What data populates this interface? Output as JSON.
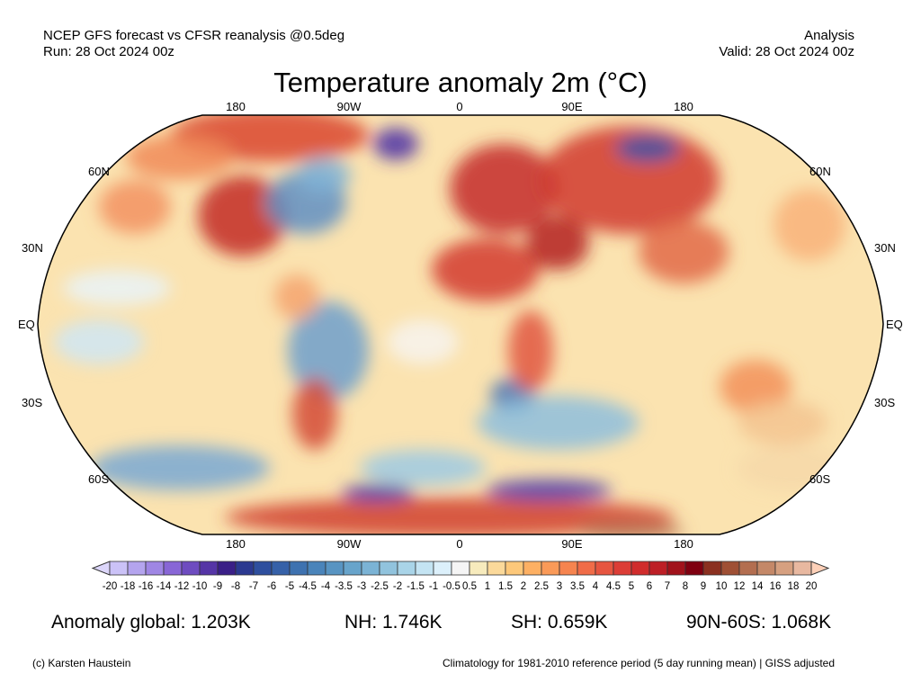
{
  "header": {
    "left_line1": "NCEP GFS forecast vs CFSR reanalysis @0.5deg",
    "left_line2": "Run: 28 Oct 2024 00z",
    "right_line1": "Analysis",
    "right_line2": "Valid: 28 Oct 2024 00z"
  },
  "title": "Temperature anomaly 2m (°C)",
  "map": {
    "lon_labels": [
      "180",
      "90W",
      "0",
      "90E",
      "180"
    ],
    "lat_labels_left": [
      "60N",
      "30N",
      "EQ",
      "30S",
      "60S"
    ],
    "lat_labels_right": [
      "60N",
      "30N",
      "EQ",
      "30S",
      "60S"
    ]
  },
  "colorbar": {
    "labels": [
      "-20",
      "-18",
      "-16",
      "-14",
      "-12",
      "-10",
      "-9",
      "-8",
      "-7",
      "-6",
      "-5",
      "-4.5",
      "-4",
      "-3.5",
      "-3",
      "-2.5",
      "-2",
      "-1.5",
      "-1",
      "-0.5",
      "0.5",
      "1",
      "1.5",
      "2",
      "2.5",
      "3",
      "3.5",
      "4",
      "4.5",
      "5",
      "6",
      "7",
      "8",
      "9",
      "10",
      "12",
      "14",
      "16",
      "18",
      "20"
    ],
    "colors": [
      "#cbc2f7",
      "#b4a4ee",
      "#9f86e4",
      "#8866d6",
      "#6e4cc0",
      "#5535a6",
      "#3a1f87",
      "#2b3990",
      "#2e4f9e",
      "#3661a8",
      "#3e72b0",
      "#4a84ba",
      "#5894c2",
      "#68a4cb",
      "#7bb3d5",
      "#91c3dd",
      "#a9d4e8",
      "#c4e4f3",
      "#dcf0fb",
      "#f5f5f5",
      "#f7ebbd",
      "#fbd99a",
      "#fdc87a",
      "#fdb063",
      "#fa9a58",
      "#f6844f",
      "#f06c48",
      "#e65540",
      "#dc3d36",
      "#d02c2c",
      "#bd1f26",
      "#a1121b",
      "#7f0010",
      "#8b3020",
      "#9f5035",
      "#b36e50",
      "#c48868",
      "#d6a080",
      "#e8b8a0"
    ],
    "under_color": "#dcd6fa",
    "over_color": "#fdd0b8"
  },
  "stats": {
    "global": "Anomaly global: 1.203K",
    "nh": "NH: 1.746K",
    "sh": "SH: 0.659K",
    "band": "90N-60S: 1.068K"
  },
  "footer": {
    "credit": "(c) Karsten Haustein",
    "note": "Climatology for 1981-2010 reference period (5 day running mean) | GISS adjusted"
  }
}
